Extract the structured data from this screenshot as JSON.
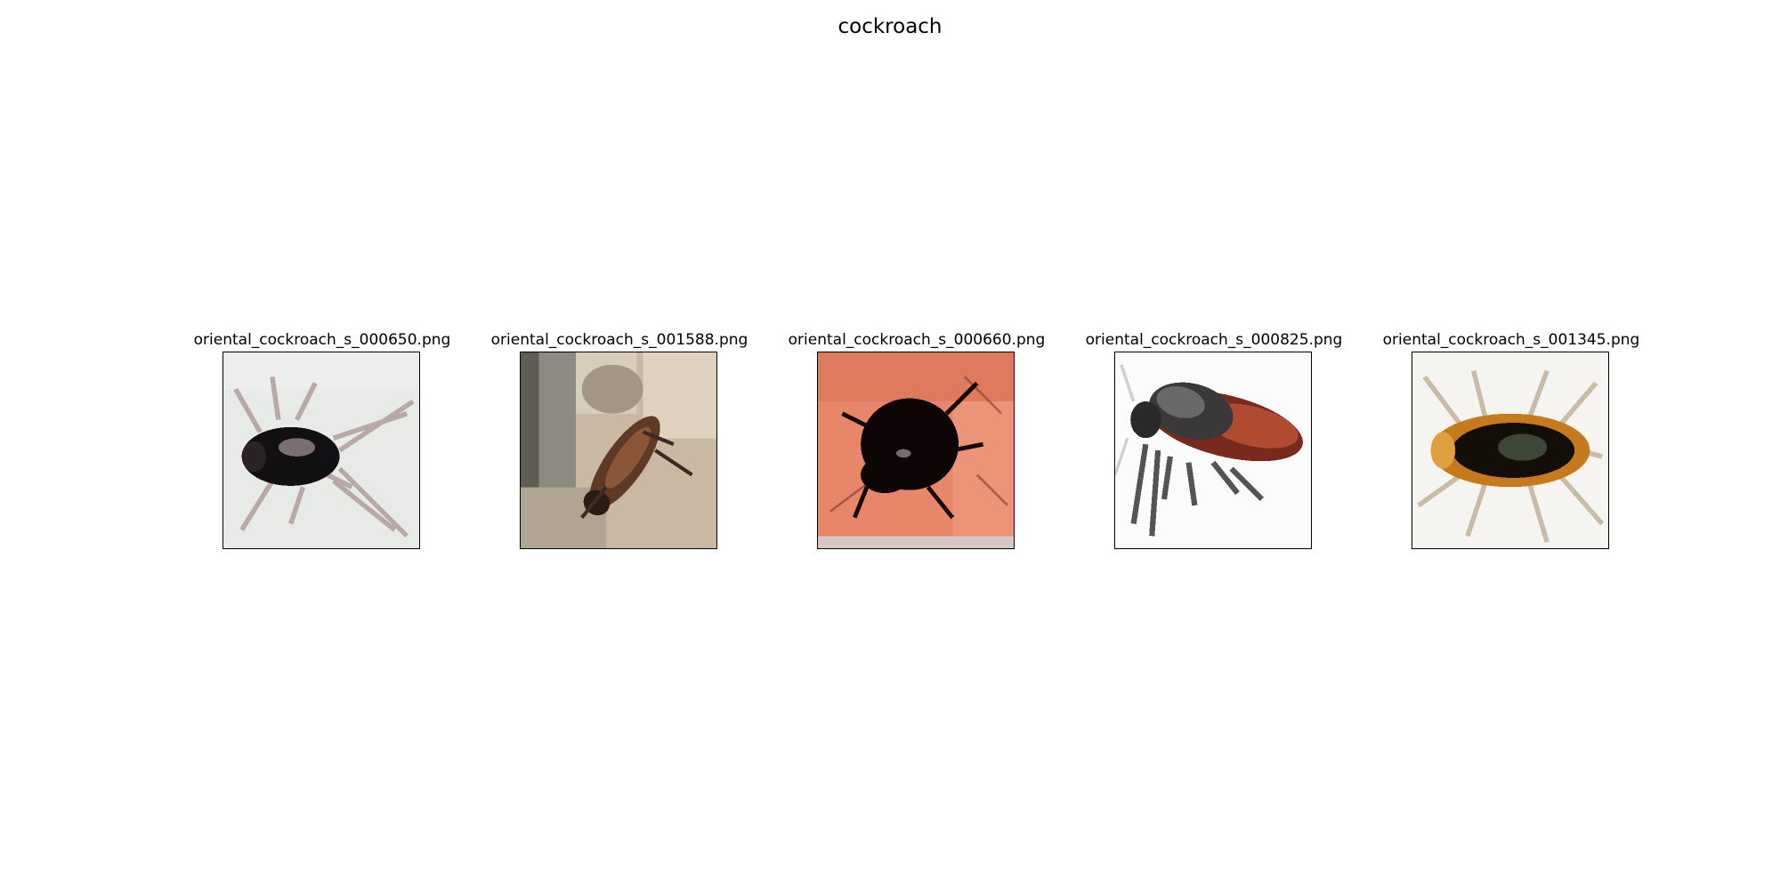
{
  "figure": {
    "title": "cockroach"
  },
  "images": [
    {
      "filename": "oriental_cockroach_s_000650.png"
    },
    {
      "filename": "oriental_cockroach_s_001588.png"
    },
    {
      "filename": "oriental_cockroach_s_000660.png"
    },
    {
      "filename": "oriental_cockroach_s_000825.png"
    },
    {
      "filename": "oriental_cockroach_s_001345.png"
    }
  ]
}
